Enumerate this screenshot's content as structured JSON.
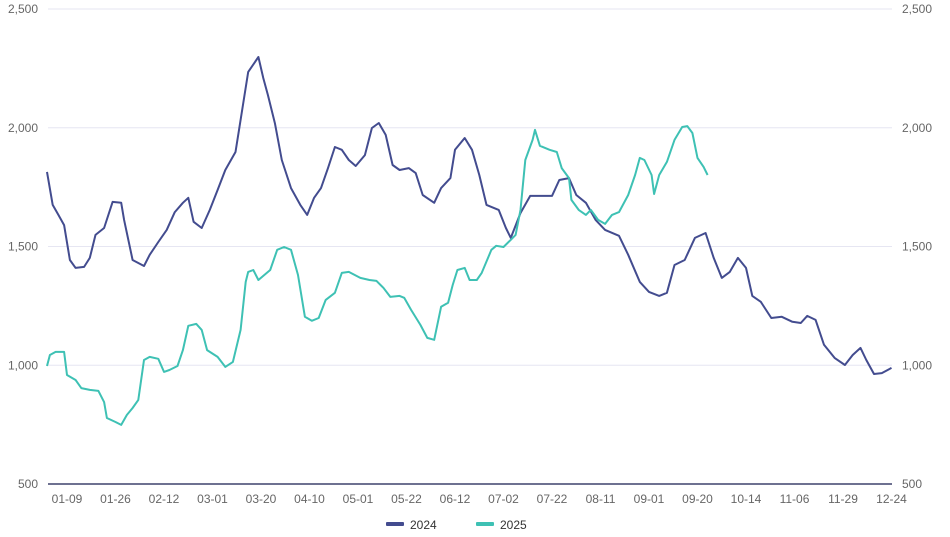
{
  "chart_data": {
    "type": "line",
    "title": "",
    "xlabel": "",
    "ylabel": "",
    "ylim": [
      500,
      2500
    ],
    "yticks": [
      "500",
      "1,000",
      "1,500",
      "2,000",
      "2,500"
    ],
    "ytick_values": [
      500,
      1000,
      1500,
      2000,
      2500
    ],
    "right_axis_mirrors_left": true,
    "grid": "horizontal",
    "legend_position": "bottom",
    "x_tick_labels": [
      "01-09",
      "01-26",
      "02-12",
      "03-01",
      "03-20",
      "04-10",
      "05-01",
      "05-22",
      "06-12",
      "07-02",
      "07-22",
      "08-11",
      "09-01",
      "09-20",
      "10-14",
      "11-06",
      "11-29",
      "12-24"
    ],
    "series": [
      {
        "name": "2024",
        "color": "#434c8f",
        "points": [
          [
            "01-02",
            1814
          ],
          [
            "01-04",
            1675
          ],
          [
            "01-06",
            1633
          ],
          [
            "01-08",
            1590
          ],
          [
            "01-10",
            1443
          ],
          [
            "01-12",
            1410
          ],
          [
            "01-15",
            1414
          ],
          [
            "01-17",
            1452
          ],
          [
            "01-19",
            1549
          ],
          [
            "01-22",
            1578
          ],
          [
            "01-25",
            1688
          ],
          [
            "01-28",
            1684
          ],
          [
            "01-29",
            1612
          ],
          [
            "02-01",
            1443
          ],
          [
            "02-05",
            1418
          ],
          [
            "02-07",
            1465
          ],
          [
            "02-10",
            1519
          ],
          [
            "02-13",
            1570
          ],
          [
            "02-16",
            1645
          ],
          [
            "02-19",
            1684
          ],
          [
            "02-21",
            1705
          ],
          [
            "02-23",
            1604
          ],
          [
            "02-26",
            1578
          ],
          [
            "02-29",
            1654
          ],
          [
            "03-03",
            1738
          ],
          [
            "03-06",
            1822
          ],
          [
            "03-10",
            1898
          ],
          [
            "03-12",
            2033
          ],
          [
            "03-15",
            2235
          ],
          [
            "03-19",
            2298
          ],
          [
            "03-21",
            2209
          ],
          [
            "03-23",
            2138
          ],
          [
            "03-26",
            2019
          ],
          [
            "03-29",
            1864
          ],
          [
            "04-02",
            1746
          ],
          [
            "04-06",
            1675
          ],
          [
            "04-09",
            1633
          ],
          [
            "04-12",
            1705
          ],
          [
            "04-15",
            1746
          ],
          [
            "04-18",
            1830
          ],
          [
            "04-21",
            1919
          ],
          [
            "04-24",
            1907
          ],
          [
            "04-27",
            1864
          ],
          [
            "04-30",
            1839
          ],
          [
            "05-04",
            1885
          ],
          [
            "05-07",
            1999
          ],
          [
            "05-10",
            2020
          ],
          [
            "05-13",
            1970
          ],
          [
            "05-16",
            1843
          ],
          [
            "05-19",
            1822
          ],
          [
            "05-23",
            1830
          ],
          [
            "05-26",
            1809
          ],
          [
            "05-29",
            1717
          ],
          [
            "06-03",
            1684
          ],
          [
            "06-06",
            1746
          ],
          [
            "06-10",
            1788
          ],
          [
            "06-12",
            1907
          ],
          [
            "06-16",
            1957
          ],
          [
            "06-19",
            1907
          ],
          [
            "06-22",
            1801
          ],
          [
            "06-25",
            1675
          ],
          [
            "06-30",
            1654
          ],
          [
            "07-03",
            1578
          ],
          [
            "07-05",
            1536
          ],
          [
            "07-09",
            1641
          ],
          [
            "07-13",
            1713
          ],
          [
            "07-17",
            1713
          ],
          [
            "07-22",
            1713
          ],
          [
            "07-25",
            1780
          ],
          [
            "07-29",
            1788
          ],
          [
            "08-01",
            1717
          ],
          [
            "08-05",
            1684
          ],
          [
            "08-09",
            1612
          ],
          [
            "08-13",
            1570
          ],
          [
            "08-19",
            1545
          ],
          [
            "08-23",
            1465
          ],
          [
            "08-28",
            1351
          ],
          [
            "09-01",
            1309
          ],
          [
            "09-05",
            1292
          ],
          [
            "09-08",
            1305
          ],
          [
            "09-11",
            1422
          ],
          [
            "09-15",
            1443
          ],
          [
            "09-19",
            1536
          ],
          [
            "09-24",
            1557
          ],
          [
            "09-28",
            1452
          ],
          [
            "10-02",
            1368
          ],
          [
            "10-06",
            1393
          ],
          [
            "10-10",
            1452
          ],
          [
            "10-14",
            1410
          ],
          [
            "10-17",
            1292
          ],
          [
            "10-21",
            1267
          ],
          [
            "10-26",
            1199
          ],
          [
            "10-31",
            1204
          ],
          [
            "11-05",
            1183
          ],
          [
            "11-09",
            1178
          ],
          [
            "11-12",
            1208
          ],
          [
            "11-16",
            1191
          ],
          [
            "11-20",
            1086
          ],
          [
            "11-25",
            1031
          ],
          [
            "11-30",
            1001
          ],
          [
            "12-04",
            1043
          ],
          [
            "12-08",
            1073
          ],
          [
            "12-11",
            1022
          ],
          [
            "12-15",
            963
          ],
          [
            "12-19",
            967
          ],
          [
            "12-24",
            989
          ]
        ]
      },
      {
        "name": "2025",
        "color": "#3ec1b4",
        "points": [
          [
            "01-02",
            997
          ],
          [
            "01-03",
            1043
          ],
          [
            "01-05",
            1056
          ],
          [
            "01-08",
            1056
          ],
          [
            "01-09",
            959
          ],
          [
            "01-12",
            938
          ],
          [
            "01-14",
            904
          ],
          [
            "01-17",
            896
          ],
          [
            "01-20",
            892
          ],
          [
            "01-22",
            845
          ],
          [
            "01-23",
            778
          ],
          [
            "01-26",
            761
          ],
          [
            "01-28",
            749
          ],
          [
            "01-30",
            791
          ],
          [
            "02-01",
            820
          ],
          [
            "02-03",
            854
          ],
          [
            "02-05",
            1022
          ],
          [
            "02-07",
            1035
          ],
          [
            "02-10",
            1027
          ],
          [
            "02-12",
            972
          ],
          [
            "02-14",
            980
          ],
          [
            "02-17",
            997
          ],
          [
            "02-19",
            1064
          ],
          [
            "02-21",
            1166
          ],
          [
            "02-24",
            1174
          ],
          [
            "02-26",
            1149
          ],
          [
            "02-28",
            1064
          ],
          [
            "03-03",
            1035
          ],
          [
            "03-06",
            993
          ],
          [
            "03-09",
            1014
          ],
          [
            "03-12",
            1149
          ],
          [
            "03-14",
            1351
          ],
          [
            "03-15",
            1393
          ],
          [
            "03-17",
            1401
          ],
          [
            "03-19",
            1359
          ],
          [
            "03-24",
            1401
          ],
          [
            "03-27",
            1486
          ],
          [
            "03-30",
            1498
          ],
          [
            "04-02",
            1486
          ],
          [
            "04-05",
            1380
          ],
          [
            "04-08",
            1204
          ],
          [
            "04-11",
            1187
          ],
          [
            "04-14",
            1199
          ],
          [
            "04-17",
            1275
          ],
          [
            "04-21",
            1305
          ],
          [
            "04-24",
            1389
          ],
          [
            "04-27",
            1393
          ],
          [
            "05-02",
            1368
          ],
          [
            "05-06",
            1359
          ],
          [
            "05-09",
            1355
          ],
          [
            "05-12",
            1326
          ],
          [
            "05-15",
            1288
          ],
          [
            "05-19",
            1292
          ],
          [
            "05-21",
            1284
          ],
          [
            "05-24",
            1233
          ],
          [
            "05-28",
            1170
          ],
          [
            "05-31",
            1115
          ],
          [
            "06-03",
            1107
          ],
          [
            "06-06",
            1246
          ],
          [
            "06-09",
            1263
          ],
          [
            "06-11",
            1338
          ],
          [
            "06-13",
            1401
          ],
          [
            "06-16",
            1410
          ],
          [
            "06-18",
            1359
          ],
          [
            "06-21",
            1359
          ],
          [
            "06-23",
            1389
          ],
          [
            "06-27",
            1486
          ],
          [
            "06-29",
            1503
          ],
          [
            "07-02",
            1498
          ],
          [
            "07-05",
            1528
          ],
          [
            "07-07",
            1549
          ],
          [
            "07-09",
            1654
          ],
          [
            "07-11",
            1864
          ],
          [
            "07-14",
            1949
          ],
          [
            "07-15",
            1991
          ],
          [
            "07-17",
            1924
          ],
          [
            "07-21",
            1907
          ],
          [
            "07-24",
            1898
          ],
          [
            "07-26",
            1830
          ],
          [
            "07-29",
            1788
          ],
          [
            "07-30",
            1696
          ],
          [
            "08-02",
            1654
          ],
          [
            "08-05",
            1633
          ],
          [
            "08-07",
            1654
          ],
          [
            "08-10",
            1612
          ],
          [
            "08-13",
            1595
          ],
          [
            "08-16",
            1633
          ],
          [
            "08-19",
            1645
          ],
          [
            "08-23",
            1717
          ],
          [
            "08-26",
            1801
          ],
          [
            "08-28",
            1873
          ],
          [
            "08-30",
            1864
          ],
          [
            "09-02",
            1801
          ],
          [
            "09-03",
            1721
          ],
          [
            "09-05",
            1801
          ],
          [
            "09-08",
            1856
          ],
          [
            "09-11",
            1949
          ],
          [
            "09-14",
            2003
          ],
          [
            "09-16",
            2007
          ],
          [
            "09-18",
            1978
          ],
          [
            "09-20",
            1873
          ],
          [
            "09-23",
            1835
          ],
          [
            "09-25",
            1801
          ]
        ]
      }
    ]
  }
}
